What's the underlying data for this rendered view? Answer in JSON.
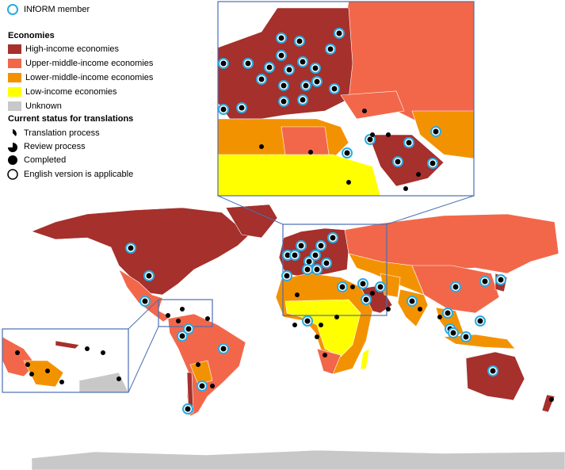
{
  "legend": {
    "member": "INfORM member",
    "economies_title": "Economies",
    "economies": [
      {
        "label": "High-income economies",
        "color": "#a5302c"
      },
      {
        "label": "Upper-middle-income economies",
        "color": "#f2674a"
      },
      {
        "label": "Lower-middle-income economies",
        "color": "#f39200"
      },
      {
        "label": "Low-income economies",
        "color": "#ffff00"
      },
      {
        "label": "Unknown",
        "color": "#c8c8c8"
      }
    ],
    "status_title": "Current status for translations",
    "status": [
      "Translation process",
      "Review process",
      "Completed",
      "English version is applicable"
    ]
  }
}
